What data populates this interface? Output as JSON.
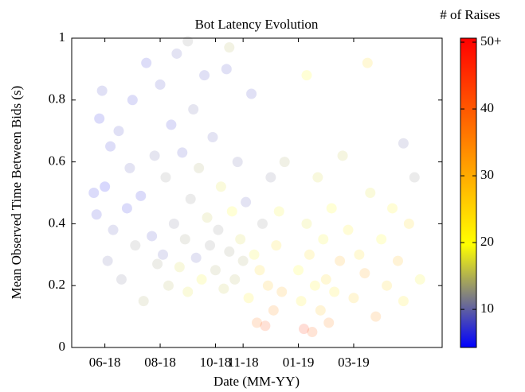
{
  "chart_data": {
    "type": "scatter",
    "title": "Bot Latency Evolution",
    "x_label": "Date (MM-YY)",
    "y_label": "Mean Observed Time Between Bids (s)",
    "colorbar_label": "# of Raises",
    "xlim": [
      4.8,
      18.2
    ],
    "xticks": [
      {
        "value": 6,
        "label": "06-18"
      },
      {
        "value": 8,
        "label": "08-18"
      },
      {
        "value": 10,
        "label": "10-18"
      },
      {
        "value": 11,
        "label": "11-18"
      },
      {
        "value": 13,
        "label": "01-19"
      },
      {
        "value": 15,
        "label": "03-19"
      }
    ],
    "ylim": [
      0,
      1
    ],
    "yticks": [
      0,
      0.2,
      0.4,
      0.6,
      0.8,
      1
    ],
    "clim": [
      4.3,
      50.6
    ],
    "cticks": [
      10,
      20,
      30,
      40,
      {
        "value": 50,
        "label": "50+"
      }
    ],
    "colormap": [
      "#0000ff",
      "#808080",
      "#ffff00",
      "#ffc000",
      "#ff8000",
      "#ff4000",
      "#ff0000"
    ],
    "opacity": 0.16,
    "x": [
      5.6,
      5.7,
      5.8,
      5.9,
      6.0,
      6.1,
      6.2,
      6.3,
      6.5,
      6.6,
      6.8,
      6.9,
      7.0,
      7.1,
      7.3,
      7.4,
      7.5,
      7.7,
      7.8,
      7.9,
      8.0,
      8.1,
      8.2,
      8.3,
      8.4,
      8.5,
      8.6,
      8.7,
      8.8,
      8.9,
      9.0,
      9.1,
      9.2,
      9.3,
      9.4,
      9.5,
      9.6,
      9.7,
      9.8,
      9.9,
      10.0,
      10.1,
      10.2,
      10.3,
      10.4,
      10.5,
      10.6,
      10.7,
      10.8,
      10.9,
      11.0,
      11.1,
      11.2,
      11.3,
      11.4,
      11.5,
      11.6,
      11.7,
      11.8,
      11.9,
      12.0,
      12.1,
      12.2,
      12.3,
      12.4,
      12.5,
      13.0,
      13.1,
      13.2,
      13.3,
      13.4,
      13.5,
      13.6,
      13.7,
      13.8,
      13.9,
      14.0,
      14.1,
      14.2,
      14.3,
      14.5,
      14.6,
      14.8,
      15.0,
      15.2,
      15.4,
      15.6,
      15.8,
      16.0,
      16.2,
      16.4,
      16.6,
      16.8,
      17.0,
      17.2,
      17.4,
      9.0,
      10.5,
      13.3,
      15.5,
      16.8
    ],
    "values": [
      0.5,
      0.43,
      0.74,
      0.83,
      0.52,
      0.28,
      0.65,
      0.38,
      0.7,
      0.22,
      0.45,
      0.58,
      0.8,
      0.33,
      0.49,
      0.15,
      0.92,
      0.36,
      0.62,
      0.27,
      0.85,
      0.3,
      0.55,
      0.2,
      0.72,
      0.4,
      0.95,
      0.26,
      0.63,
      0.35,
      0.18,
      0.48,
      0.77,
      0.29,
      0.58,
      0.22,
      0.88,
      0.42,
      0.33,
      0.68,
      0.25,
      0.38,
      0.52,
      0.19,
      0.9,
      0.31,
      0.44,
      0.22,
      0.6,
      0.35,
      0.28,
      0.47,
      0.16,
      0.82,
      0.3,
      0.08,
      0.25,
      0.4,
      0.07,
      0.2,
      0.55,
      0.12,
      0.33,
      0.44,
      0.18,
      0.6,
      0.25,
      0.15,
      0.06,
      0.4,
      0.3,
      0.05,
      0.2,
      0.55,
      0.12,
      0.35,
      0.22,
      0.08,
      0.45,
      0.18,
      0.28,
      0.62,
      0.38,
      0.16,
      0.3,
      0.24,
      0.5,
      0.1,
      0.35,
      0.2,
      0.45,
      0.28,
      0.15,
      0.4,
      0.55,
      0.22,
      0.99,
      0.97,
      0.88,
      0.92,
      0.66
    ],
    "raises": [
      6,
      7,
      6,
      8,
      5,
      10,
      7,
      9,
      8,
      11,
      6,
      9,
      7,
      12,
      6,
      14,
      7,
      8,
      10,
      13,
      8,
      9,
      12,
      15,
      7,
      11,
      9,
      17,
      8,
      13,
      18,
      12,
      10,
      9,
      14,
      19,
      8,
      16,
      12,
      9,
      14,
      12,
      18,
      16,
      8,
      13,
      20,
      15,
      10,
      17,
      14,
      9,
      22,
      8,
      19,
      38,
      25,
      12,
      42,
      28,
      11,
      35,
      24,
      19,
      30,
      14,
      20,
      22,
      45,
      18,
      24,
      40,
      21,
      17,
      28,
      19,
      25,
      36,
      20,
      23,
      30,
      16,
      22,
      27,
      24,
      32,
      18,
      34,
      20,
      26,
      21,
      29,
      23,
      25,
      12,
      19,
      12,
      15,
      20,
      25,
      10
    ]
  }
}
